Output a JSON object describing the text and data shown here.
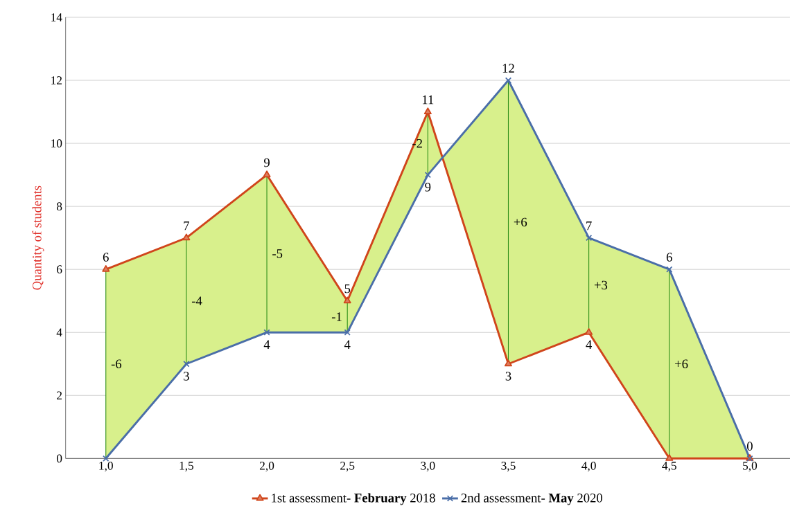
{
  "chart_data": {
    "type": "line",
    "ylabel": "Quantity of students",
    "categories": [
      "1,0",
      "1,5",
      "2,0",
      "2,5",
      "3,0",
      "3,5",
      "4,0",
      "4,5",
      "5,0"
    ],
    "series": [
      {
        "name": "1st assessment- **February** 2018",
        "color": "#d0451b",
        "marker": "triangle",
        "values": [
          6,
          7,
          9,
          5,
          11,
          3,
          4,
          0,
          0
        ],
        "value_labels": [
          "6",
          "7",
          "9",
          "5",
          "11",
          "3",
          "4",
          null,
          null
        ]
      },
      {
        "name": "2nd assessment- **May** 2020",
        "color": "#4a6ea8",
        "marker": "cross",
        "values": [
          0,
          3,
          4,
          4,
          9,
          12,
          7,
          6,
          0
        ],
        "value_labels": [
          null,
          "3",
          "4",
          "4",
          "9",
          "12",
          "7",
          "6",
          "0"
        ]
      }
    ],
    "ylim": [
      0,
      14
    ],
    "yticks": [
      0,
      2,
      4,
      6,
      8,
      10,
      12,
      14
    ],
    "grid": "y",
    "legend": "bottom",
    "annotations": [
      "-6",
      "-4",
      "-5",
      "-1",
      "-2",
      "+6",
      "+3",
      "+6"
    ]
  }
}
